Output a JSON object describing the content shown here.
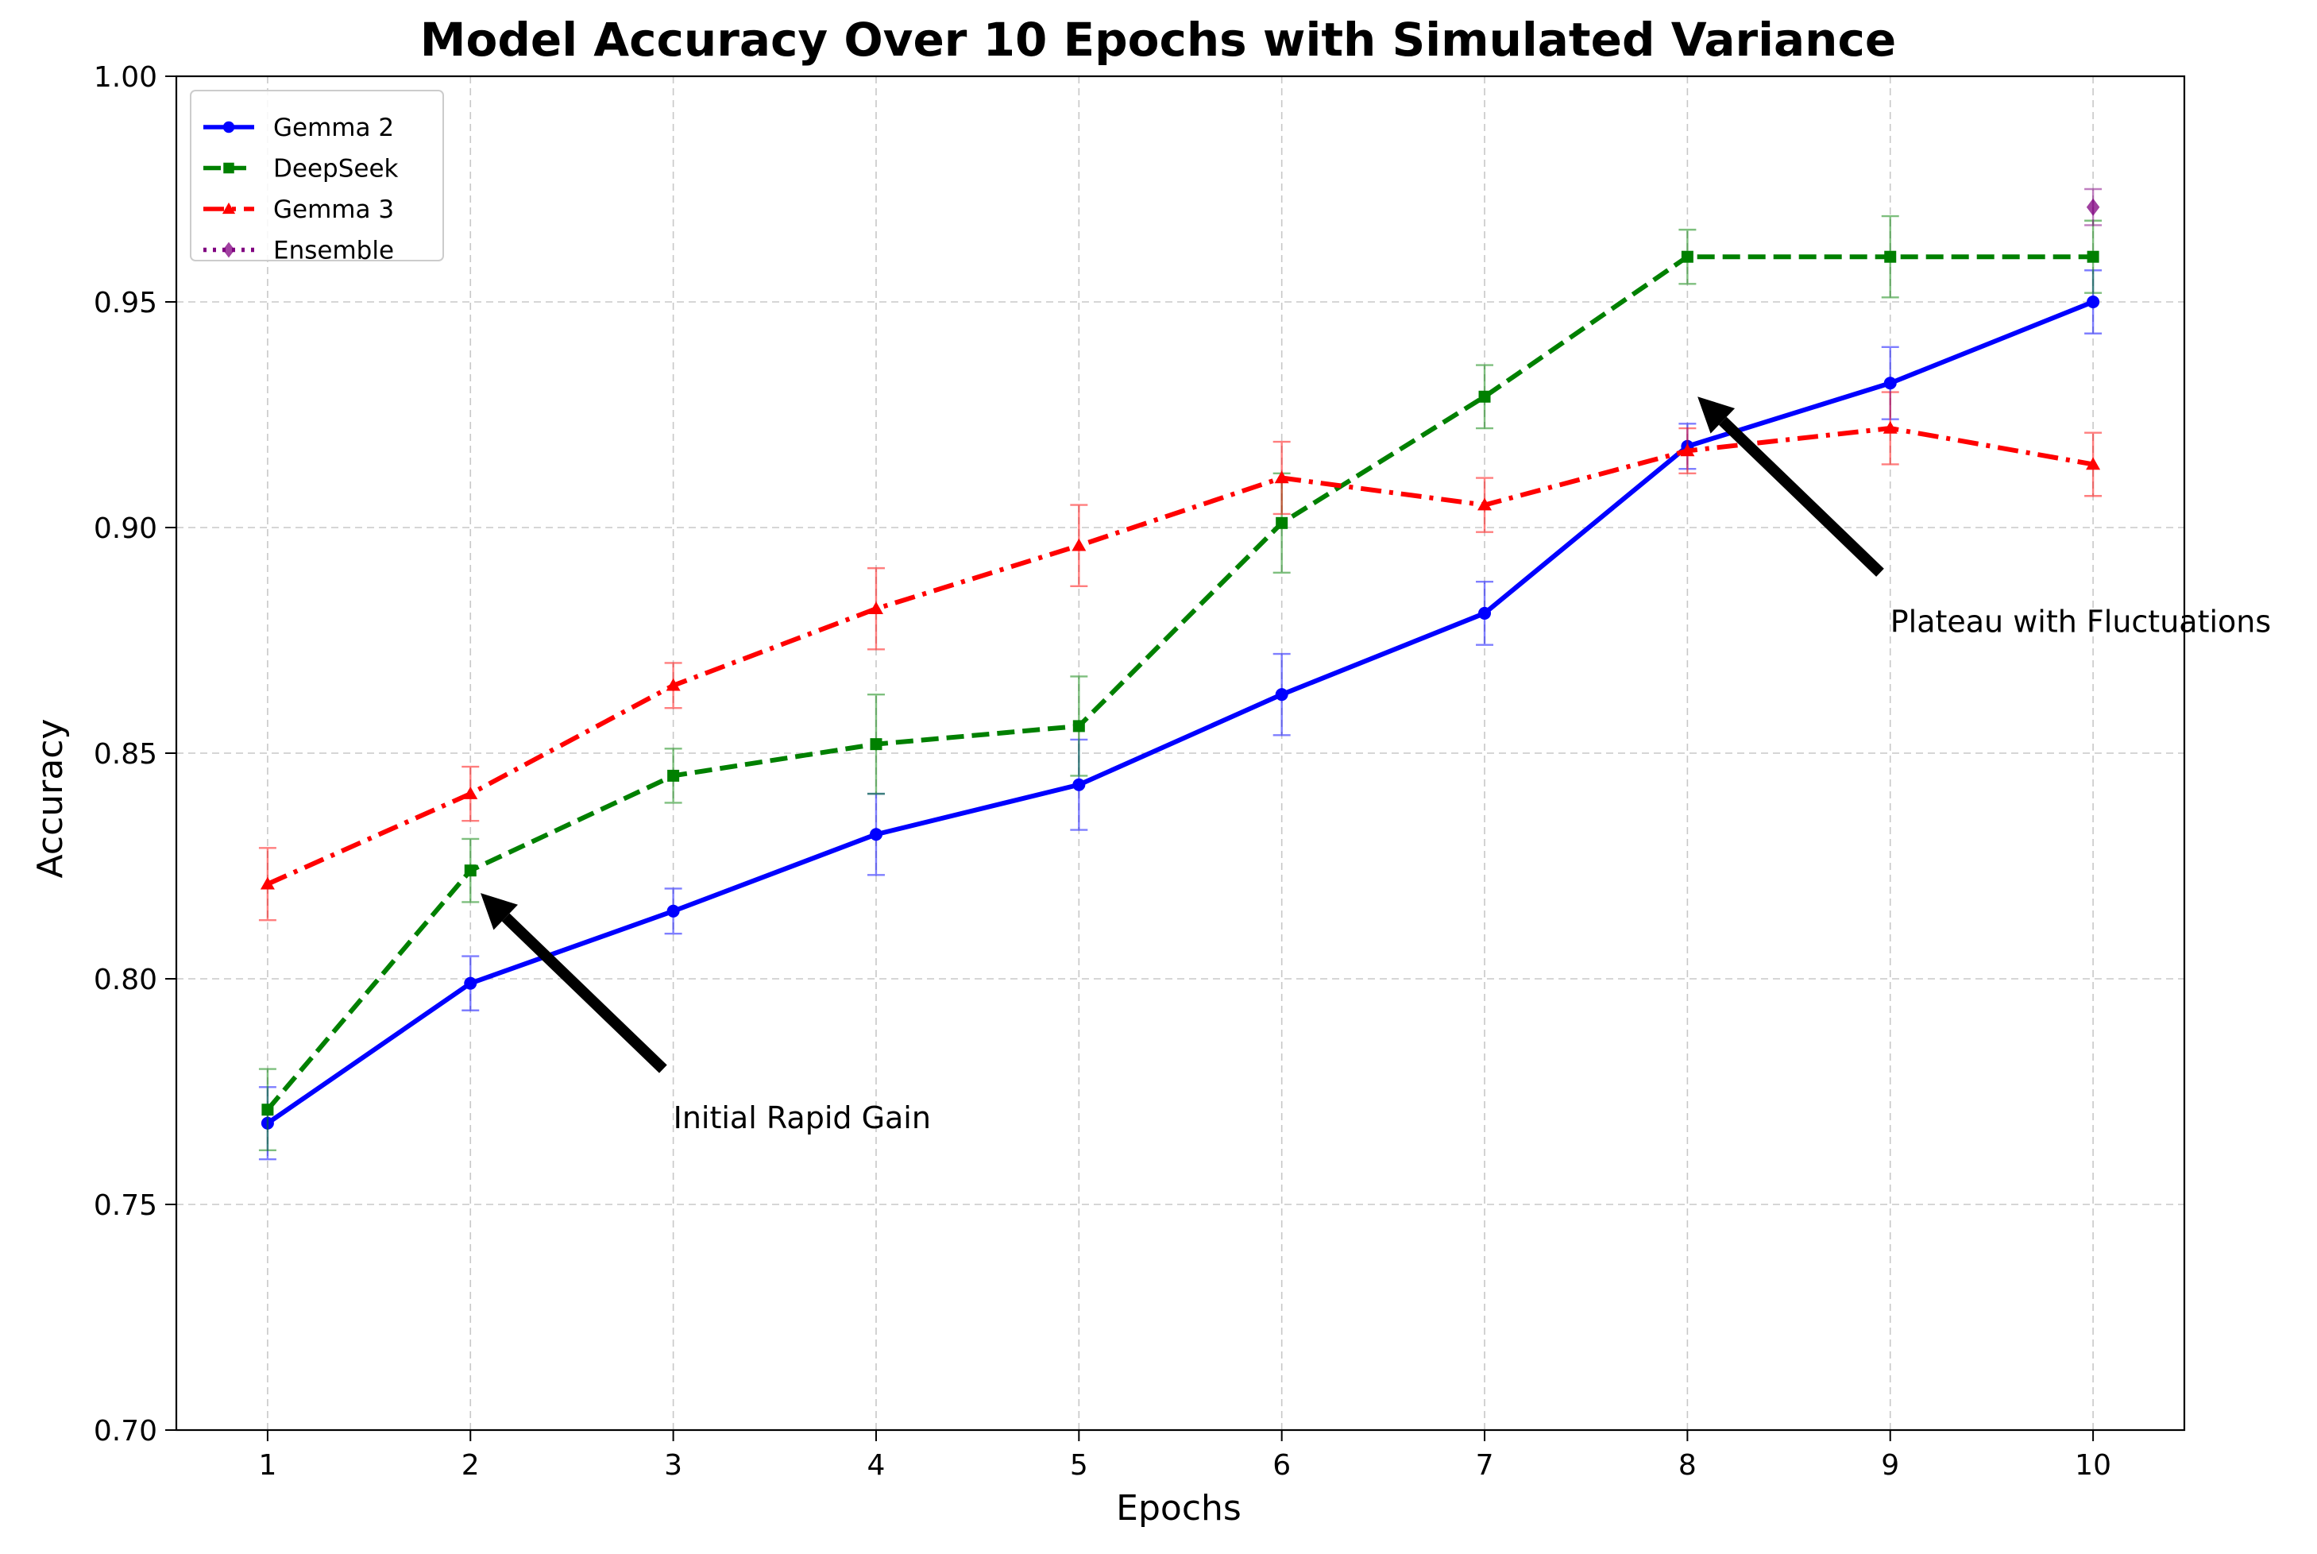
{
  "chart_data": {
    "type": "line",
    "title": "Model Accuracy Over 10 Epochs with Simulated Variance",
    "xlabel": "Epochs",
    "ylabel": "Accuracy",
    "xlim": [
      0.55,
      10.45
    ],
    "ylim": [
      0.7,
      1.0
    ],
    "x_ticks": [
      1,
      2,
      3,
      4,
      5,
      6,
      7,
      8,
      9,
      10
    ],
    "y_ticks": [
      0.7,
      0.75,
      0.8,
      0.85,
      0.9,
      0.95,
      1.0
    ],
    "y_tick_labels": [
      "0.70",
      "0.75",
      "0.80",
      "0.85",
      "0.90",
      "0.95",
      "1.00"
    ],
    "grid": true,
    "legend_position": "top-left",
    "series": [
      {
        "name": "Gemma 2",
        "color": "#0000ff",
        "linestyle": "solid",
        "marker": "circle",
        "x": [
          1,
          2,
          3,
          4,
          5,
          6,
          7,
          8,
          9,
          10
        ],
        "values": [
          0.768,
          0.799,
          0.815,
          0.832,
          0.843,
          0.863,
          0.881,
          0.918,
          0.932,
          0.95
        ],
        "errors": [
          0.008,
          0.006,
          0.005,
          0.009,
          0.01,
          0.009,
          0.007,
          0.005,
          0.008,
          0.007
        ]
      },
      {
        "name": "DeepSeek",
        "color": "#008000",
        "linestyle": "dashed",
        "marker": "square",
        "x": [
          1,
          2,
          3,
          4,
          5,
          6,
          7,
          8,
          9,
          10
        ],
        "values": [
          0.771,
          0.824,
          0.845,
          0.852,
          0.856,
          0.901,
          0.929,
          0.96,
          0.96,
          0.96
        ],
        "errors": [
          0.009,
          0.007,
          0.006,
          0.011,
          0.011,
          0.011,
          0.007,
          0.006,
          0.009,
          0.008
        ]
      },
      {
        "name": "Gemma 3",
        "color": "#ff0000",
        "linestyle": "dashdot",
        "marker": "triangle",
        "x": [
          1,
          2,
          3,
          4,
          5,
          6,
          7,
          8,
          9,
          10
        ],
        "values": [
          0.821,
          0.841,
          0.865,
          0.882,
          0.896,
          0.911,
          0.905,
          0.917,
          0.922,
          0.914
        ],
        "errors": [
          0.008,
          0.006,
          0.005,
          0.009,
          0.009,
          0.008,
          0.006,
          0.005,
          0.008,
          0.007
        ]
      },
      {
        "name": "Ensemble",
        "color": "#800080",
        "linestyle": "dotted",
        "marker": "diamond",
        "x": [
          10
        ],
        "values": [
          0.971
        ],
        "errors": [
          0.004
        ]
      }
    ],
    "annotations": [
      {
        "text": "Initial Rapid Gain",
        "x": 3.0,
        "y": 0.769,
        "arrow_from": [
          2.95,
          0.78
        ],
        "arrow_to": [
          2.05,
          0.819
        ]
      },
      {
        "text": "Plateau with Fluctuations",
        "x": 9.0,
        "y": 0.879,
        "arrow_from": [
          8.95,
          0.89
        ],
        "arrow_to": [
          8.05,
          0.929
        ]
      }
    ]
  }
}
